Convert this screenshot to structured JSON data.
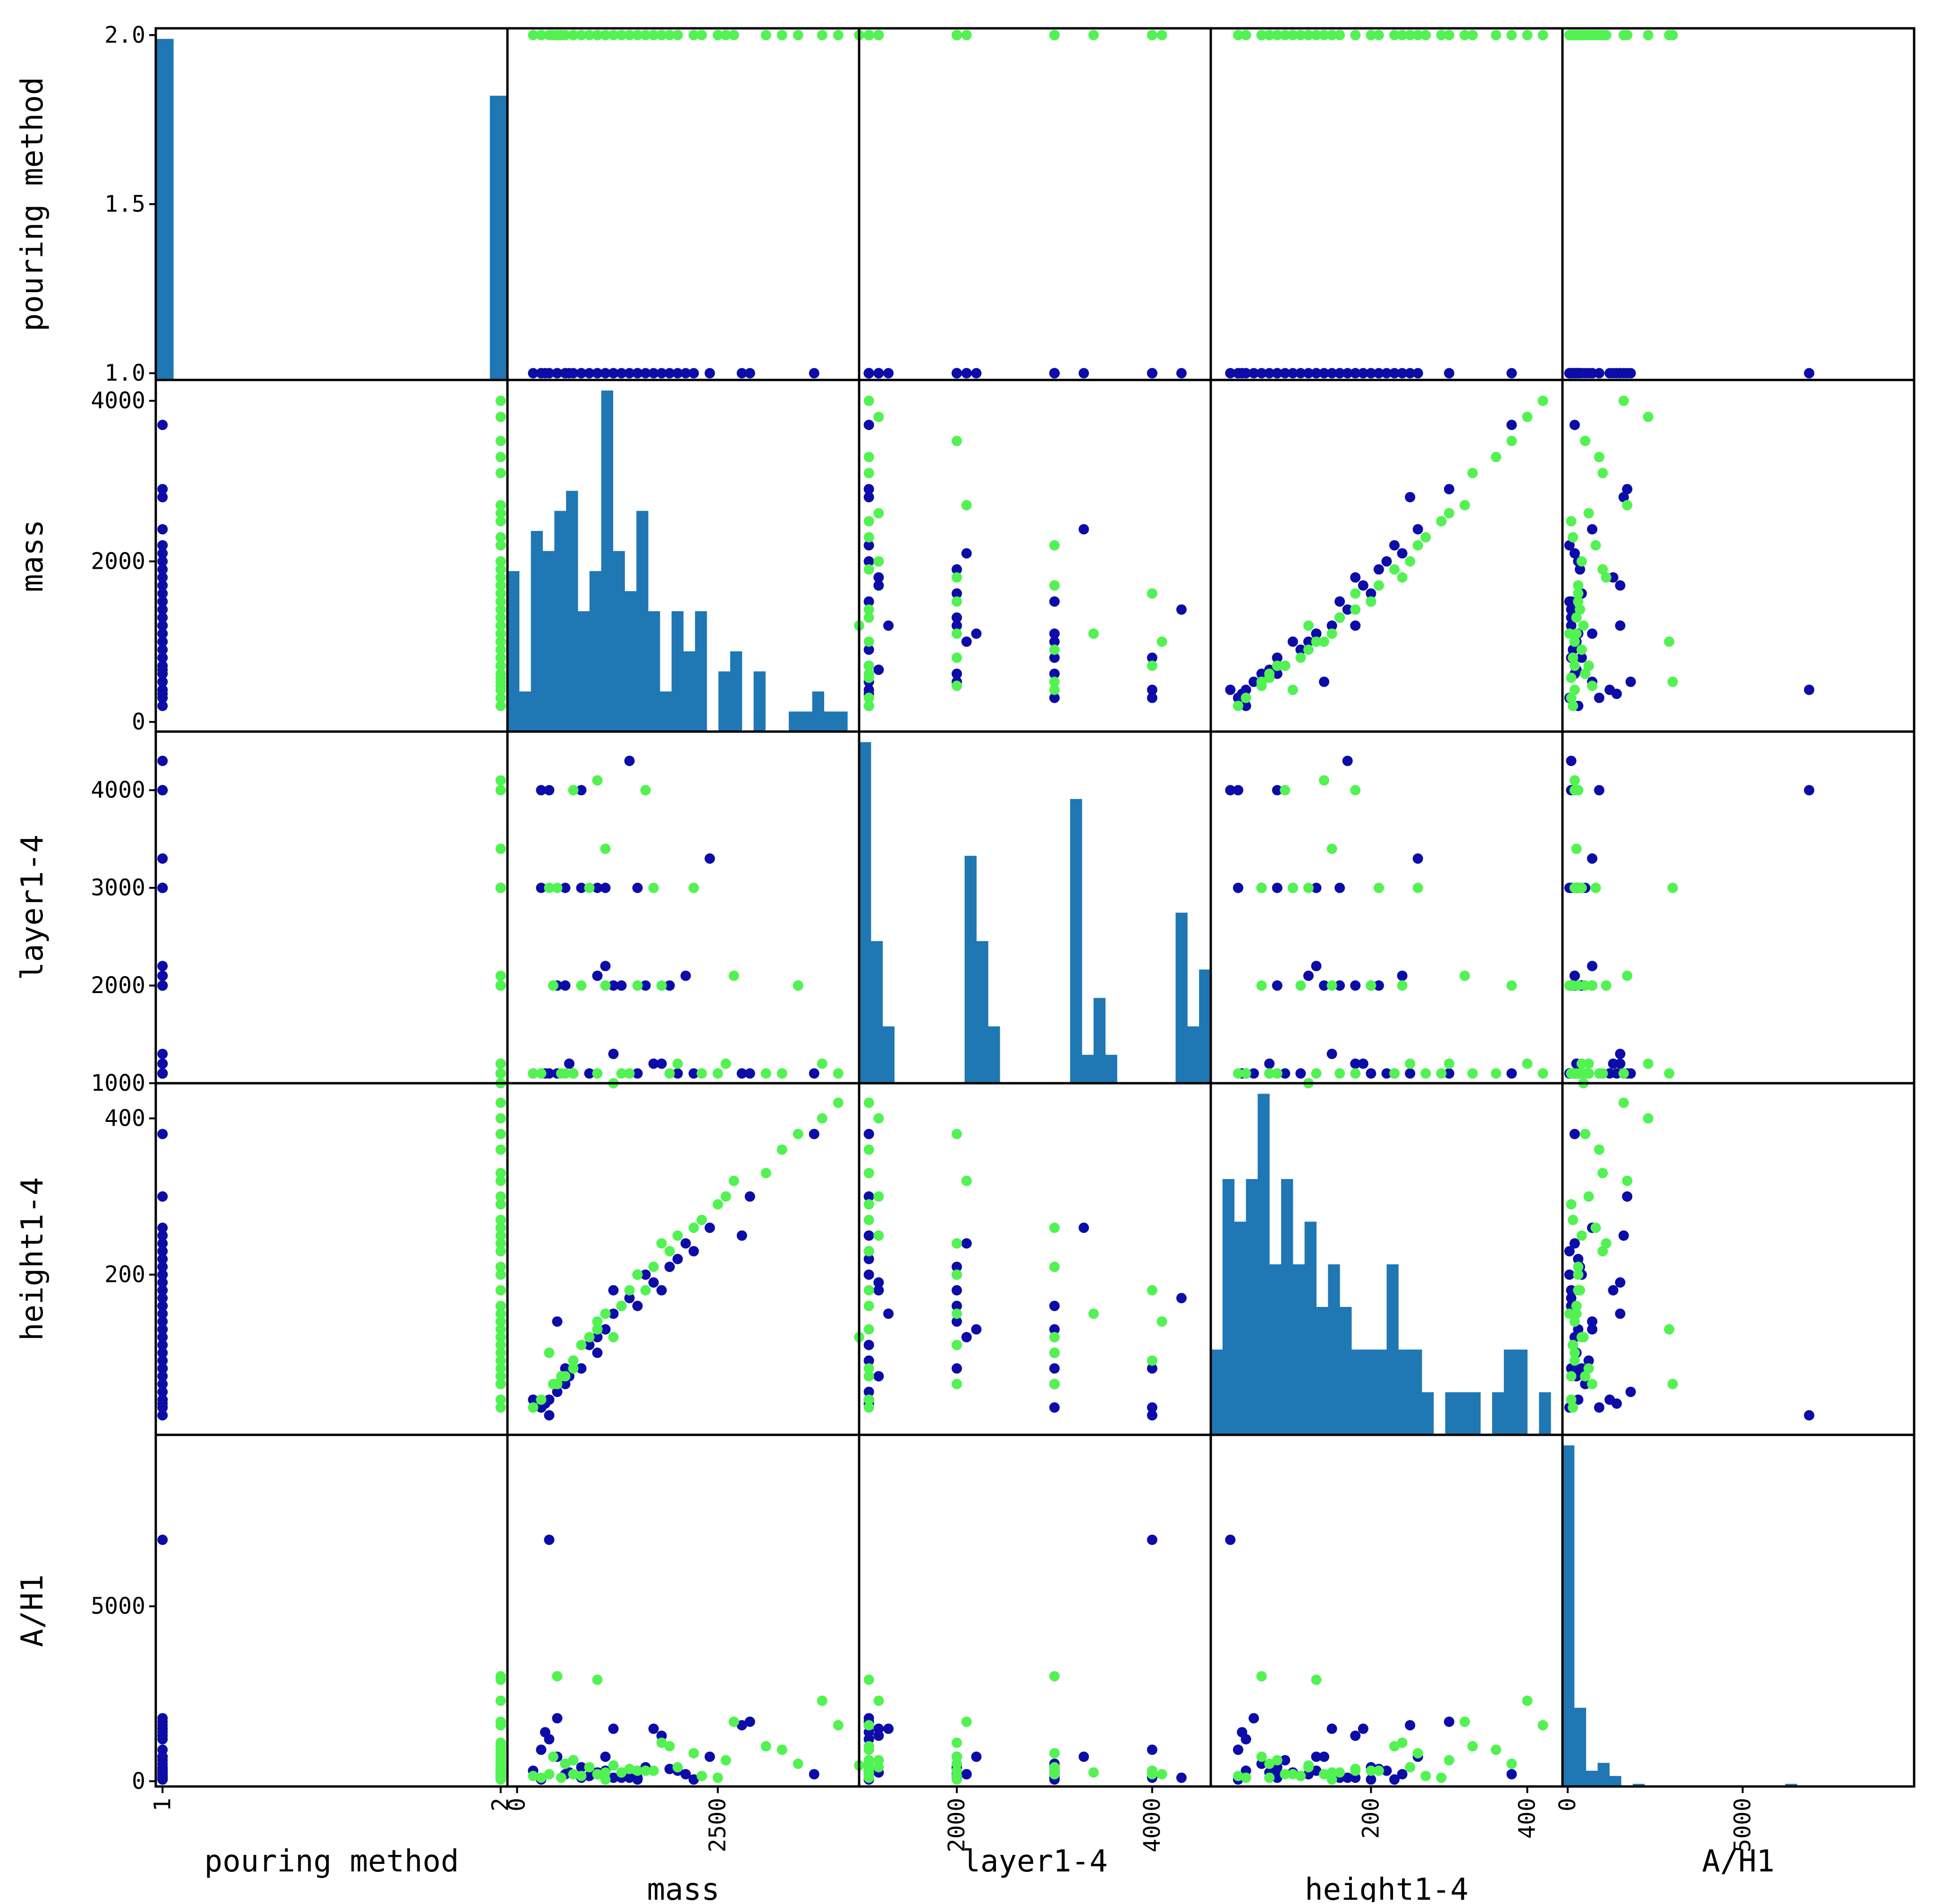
{
  "chart_data": {
    "type": "scatter",
    "subtype": "scatter_matrix",
    "variables": [
      "pouring method",
      "mass",
      "layer1-4",
      "height1-4",
      "A/H1"
    ],
    "ranges": {
      "pouring method": [
        0.98,
        2.02
      ],
      "mass": [
        -120,
        4260
      ],
      "layer1-4": [
        1000,
        4600
      ],
      "height1-4": [
        -5,
        445
      ],
      "A/H1": [
        -150,
        9900
      ]
    },
    "ticks": {
      "pouring method": [
        1.0,
        1.5,
        2.0
      ],
      "pouring method_x": [
        1,
        2
      ],
      "mass": [
        0,
        2000,
        4000
      ],
      "mass_x": [
        0,
        2500
      ],
      "layer1-4": [
        1000,
        2000,
        3000,
        4000
      ],
      "layer1-4_x": [
        2000,
        4000
      ],
      "height1-4": [
        200,
        400
      ],
      "A/H1": [
        0,
        5000
      ]
    },
    "tick_labels": {
      "pouring method": [
        "1.0",
        "1.5",
        "2.0"
      ],
      "pouring method_x": [
        "1",
        "2"
      ],
      "mass": [
        "0",
        "2000",
        "4000"
      ],
      "mass_x": [
        "0",
        "2500"
      ],
      "layer1-4": [
        "1000",
        "2000",
        "3000",
        "4000"
      ],
      "layer1-4_x": [
        "2000",
        "4000"
      ],
      "height1-4": [
        "200",
        "400"
      ],
      "A/H1": [
        "0",
        "5000"
      ]
    },
    "groups": [
      {
        "pouring_method": 1,
        "color": "#0c0ca8"
      },
      {
        "pouring_method": 2,
        "color": "#52f252"
      }
    ],
    "bar_color": "#1f77b4",
    "records": [
      [
        1,
        500,
        2000,
        140,
        700
      ],
      [
        1,
        1200,
        2000,
        180,
        100
      ],
      [
        1,
        800,
        3000,
        80,
        400
      ],
      [
        1,
        1500,
        1100,
        200,
        50
      ],
      [
        1,
        2000,
        1100,
        220,
        300
      ],
      [
        1,
        300,
        4000,
        30,
        900
      ],
      [
        1,
        2900,
        1100,
        300,
        1700
      ],
      [
        1,
        1000,
        2100,
        120,
        200
      ],
      [
        1,
        600,
        3000,
        60,
        500
      ],
      [
        1,
        1800,
        1200,
        180,
        1300
      ],
      [
        1,
        2400,
        3300,
        260,
        700
      ],
      [
        1,
        1300,
        2000,
        160,
        100
      ],
      [
        1,
        700,
        1100,
        90,
        600
      ],
      [
        1,
        1100,
        3000,
        130,
        300
      ],
      [
        1,
        3700,
        1100,
        380,
        200
      ],
      [
        1,
        400,
        4000,
        20,
        6900
      ],
      [
        1,
        1600,
        2000,
        200,
        400
      ],
      [
        1,
        900,
        1100,
        110,
        150
      ],
      [
        1,
        2100,
        2100,
        240,
        200
      ],
      [
        1,
        500,
        1100,
        50,
        1800
      ],
      [
        1,
        1400,
        4300,
        170,
        100
      ],
      [
        1,
        200,
        1100,
        40,
        300
      ],
      [
        1,
        1000,
        3000,
        100,
        250
      ],
      [
        1,
        1700,
        1200,
        190,
        1500
      ],
      [
        1,
        600,
        2000,
        80,
        200
      ],
      [
        1,
        2800,
        1100,
        250,
        1600
      ],
      [
        1,
        1200,
        1300,
        150,
        1500
      ],
      [
        1,
        800,
        4000,
        80,
        100
      ],
      [
        1,
        300,
        3000,
        30,
        50
      ],
      [
        1,
        1900,
        2000,
        210,
        350
      ],
      [
        1,
        400,
        1100,
        40,
        1200
      ],
      [
        1,
        1100,
        2200,
        130,
        700
      ],
      [
        1,
        650,
        1200,
        70,
        250
      ],
      [
        1,
        1500,
        3000,
        160,
        100
      ],
      [
        1,
        2200,
        1100,
        230,
        50
      ],
      [
        1,
        350,
        1100,
        35,
        1400
      ],
      [
        2,
        400,
        3000,
        100,
        200
      ],
      [
        2,
        1100,
        2000,
        150,
        50
      ],
      [
        2,
        1600,
        4000,
        180,
        300
      ],
      [
        2,
        700,
        1100,
        80,
        600
      ],
      [
        2,
        2500,
        1100,
        290,
        100
      ],
      [
        2,
        900,
        3000,
        120,
        400
      ],
      [
        2,
        3800,
        1200,
        400,
        2300
      ],
      [
        2,
        200,
        1100,
        30,
        150
      ],
      [
        2,
        1800,
        2000,
        240,
        1100
      ],
      [
        2,
        1300,
        1100,
        160,
        250
      ],
      [
        2,
        500,
        3000,
        60,
        3000
      ],
      [
        2,
        3300,
        1100,
        360,
        900
      ],
      [
        2,
        1000,
        4100,
        140,
        200
      ],
      [
        2,
        2700,
        2100,
        320,
        1700
      ],
      [
        2,
        600,
        1100,
        70,
        500
      ],
      [
        2,
        1500,
        2000,
        200,
        300
      ],
      [
        2,
        4000,
        1100,
        420,
        1600
      ],
      [
        2,
        2200,
        3000,
        260,
        800
      ],
      [
        2,
        300,
        1100,
        40,
        100
      ],
      [
        2,
        1200,
        1000,
        120,
        450
      ],
      [
        2,
        1900,
        1100,
        230,
        1000
      ],
      [
        2,
        800,
        2000,
        110,
        150
      ],
      [
        2,
        2600,
        1200,
        300,
        600
      ],
      [
        2,
        1400,
        1100,
        180,
        350
      ],
      [
        2,
        700,
        4000,
        90,
        200
      ],
      [
        2,
        3100,
        1100,
        330,
        1000
      ],
      [
        2,
        450,
        2000,
        60,
        700
      ],
      [
        2,
        1700,
        3000,
        210,
        300
      ],
      [
        2,
        2300,
        1100,
        270,
        150
      ],
      [
        2,
        1000,
        1100,
        130,
        2900
      ],
      [
        2,
        3500,
        2000,
        380,
        500
      ],
      [
        2,
        550,
        1100,
        70,
        100
      ],
      [
        2,
        2000,
        1200,
        250,
        400
      ],
      [
        2,
        1100,
        3400,
        150,
        250
      ]
    ],
    "hist_counts": {
      "pouring method": [
        12,
        0,
        0,
        0,
        0,
        0,
        0,
        0,
        0,
        0,
        0,
        0,
        0,
        0,
        0,
        0,
        0,
        0,
        0,
        10
      ],
      "mass": [
        8,
        2,
        10,
        9,
        11,
        12,
        6,
        8,
        17,
        9,
        7,
        11,
        6,
        2,
        6,
        4,
        6,
        0,
        3,
        4,
        0,
        3,
        0,
        0,
        1,
        1,
        2,
        1,
        1,
        0
      ],
      "layer1-4": [
        12,
        5,
        2,
        0,
        0,
        0,
        0,
        0,
        0,
        8,
        5,
        2,
        0,
        0,
        0,
        0,
        0,
        0,
        10,
        1,
        3,
        1,
        0,
        0,
        0,
        0,
        0,
        6,
        2,
        4
      ],
      "height1-4": [
        2,
        6,
        5,
        6,
        8,
        4,
        6,
        4,
        5,
        3,
        4,
        3,
        2,
        2,
        2,
        4,
        2,
        2,
        1,
        0,
        1,
        1,
        1,
        0,
        1,
        2,
        2,
        0,
        1,
        0
      ],
      "A/H1": [
        13,
        3,
        0.6,
        0.9,
        0.4,
        0,
        0.1,
        0,
        0,
        0,
        0,
        0,
        0,
        0,
        0,
        0,
        0,
        0,
        0,
        0.1,
        0,
        0,
        0,
        0,
        0,
        0,
        0,
        0,
        0,
        0
      ]
    }
  }
}
